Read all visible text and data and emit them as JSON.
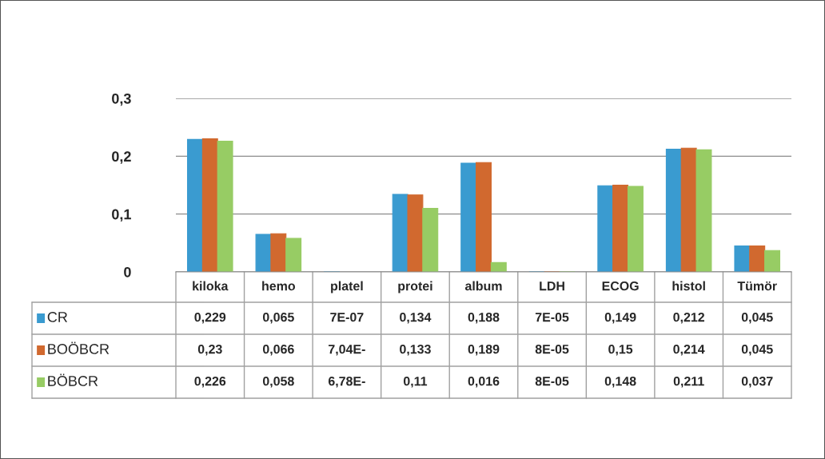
{
  "chart_data": {
    "type": "bar",
    "categories": [
      "kiloka",
      "hemo",
      "platel",
      "protei",
      "album",
      "LDH",
      "ECOG",
      "histol",
      "Tümör"
    ],
    "series": [
      {
        "name": "CR",
        "color": "#3a9bd0",
        "values": [
          0.229,
          0.065,
          7e-07,
          0.134,
          0.188,
          7e-05,
          0.149,
          0.212,
          0.045
        ],
        "value_labels": [
          "0,229",
          "0,065",
          "7E-07",
          "0,134",
          "0,188",
          "7E-05",
          "0,149",
          "0,212",
          "0,045"
        ]
      },
      {
        "name": "BOÖBCR",
        "color": "#d1692f",
        "values": [
          0.23,
          0.066,
          null,
          0.133,
          0.189,
          8e-05,
          0.15,
          0.214,
          0.045
        ],
        "value_labels": [
          "0,23",
          "0,066",
          "7,04E-",
          "0,133",
          "0,189",
          "8E-05",
          "0,15",
          "0,214",
          "0,045"
        ]
      },
      {
        "name": "BÖBCR",
        "color": "#97cc64",
        "values": [
          0.226,
          0.058,
          null,
          0.11,
          0.016,
          8e-05,
          0.148,
          0.211,
          0.037
        ],
        "value_labels": [
          "0,226",
          "0,058",
          "6,78E-",
          "0,11",
          "0,016",
          "8E-05",
          "0,148",
          "0,211",
          "0,037"
        ]
      }
    ],
    "ylim": [
      0,
      0.3
    ],
    "yticks": [
      0,
      {
        "value": 0.1,
        "label": "0,1"
      },
      {
        "value": 0.2,
        "label": "0,2"
      },
      {
        "value": 0.3,
        "label": "0,3"
      }
    ],
    "grid": "y",
    "legend": "bottom"
  }
}
